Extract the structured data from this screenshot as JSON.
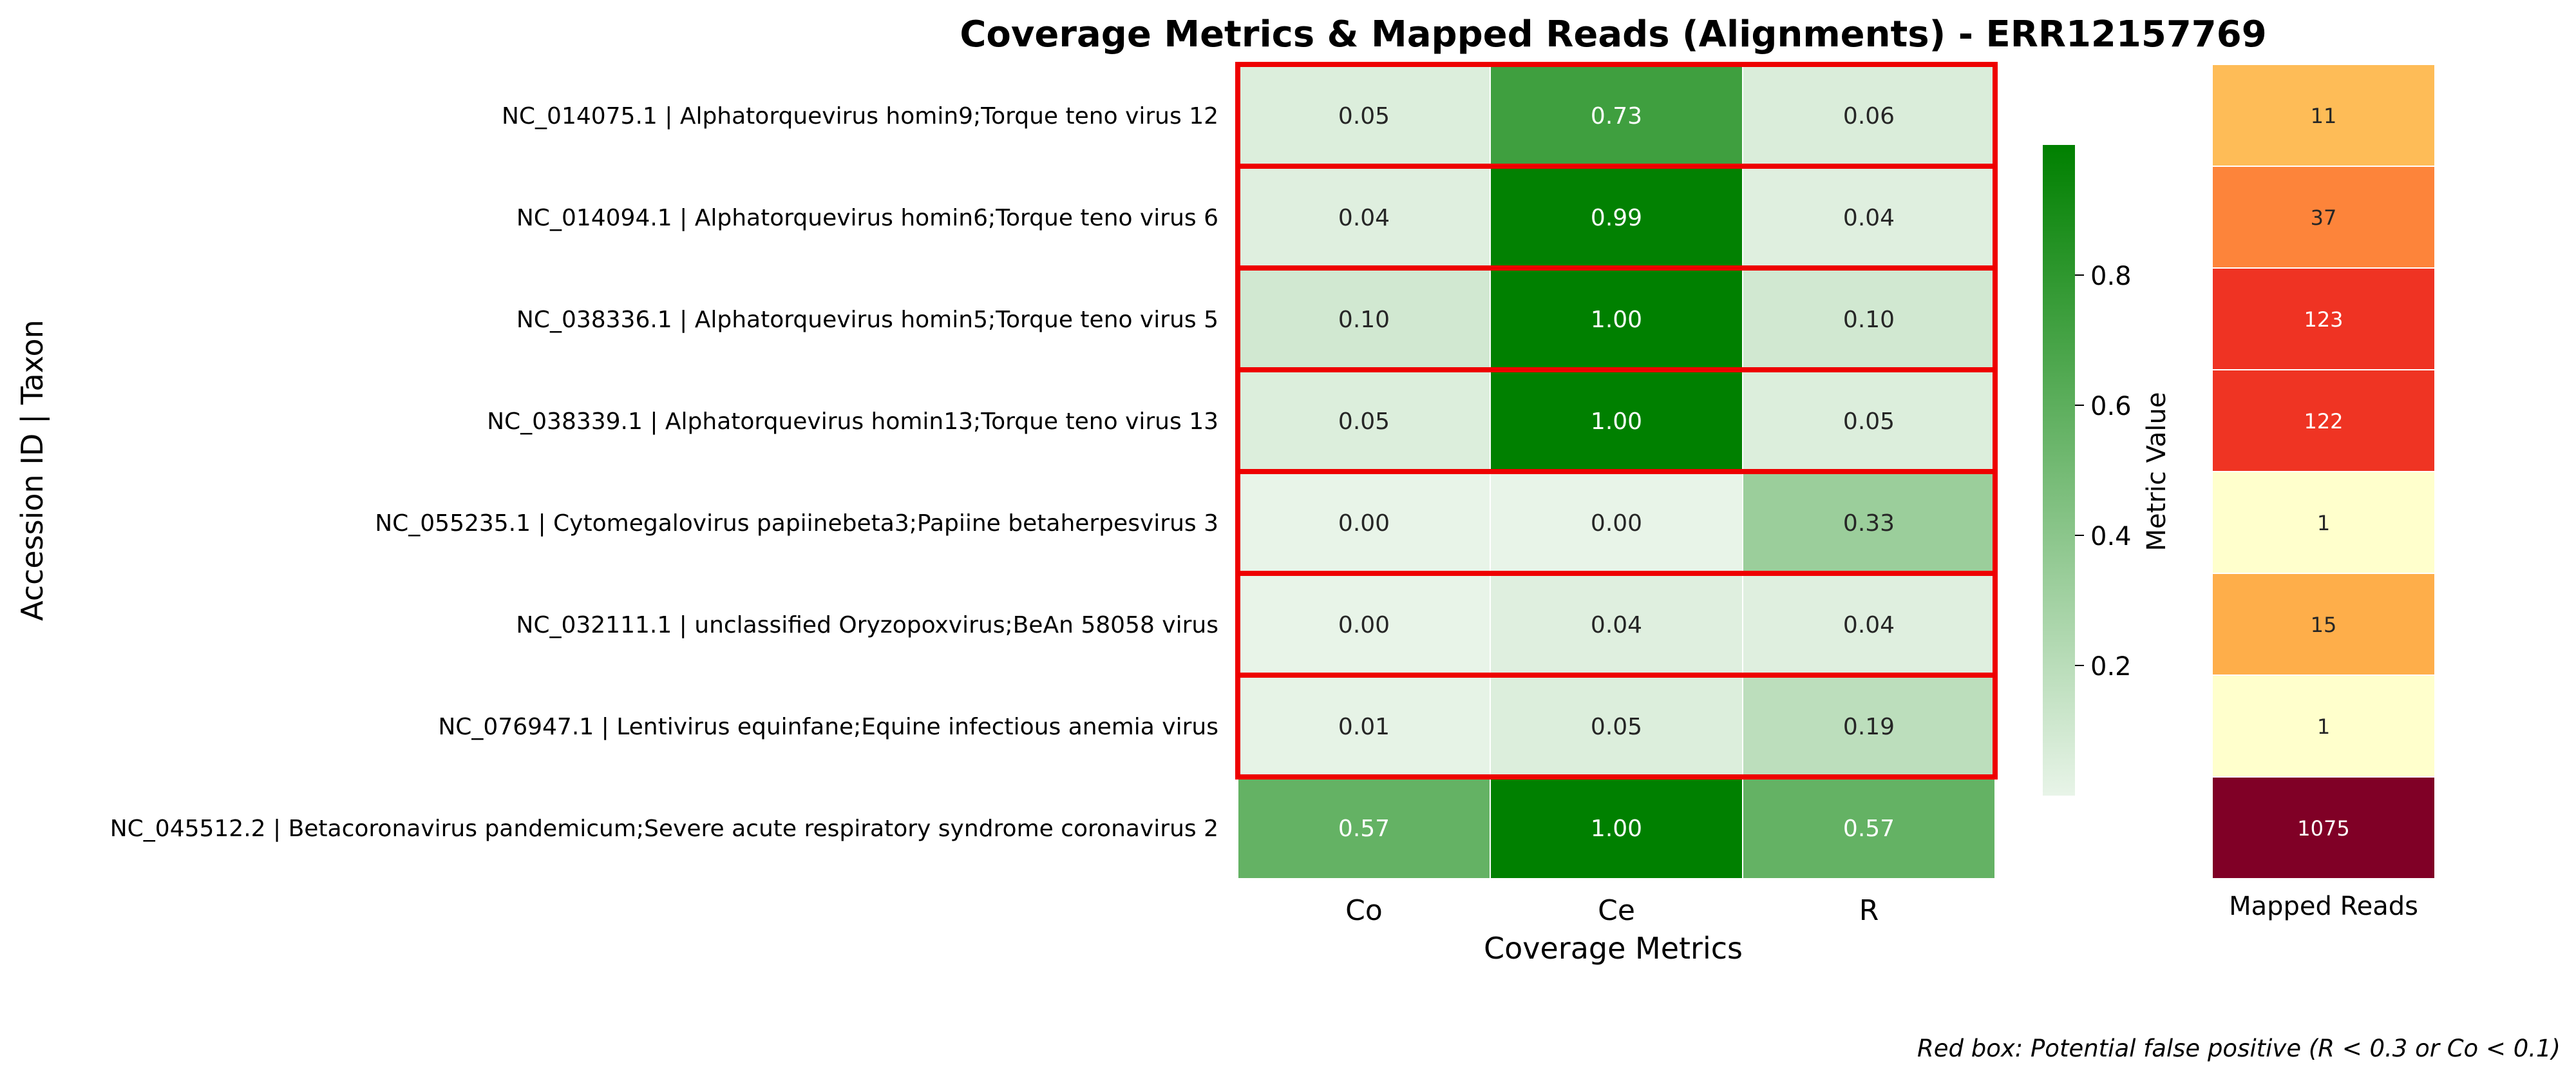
{
  "chart_data": {
    "type": "heatmap",
    "title": "Coverage Metrics & Mapped Reads (Alignments) - ERR12157769",
    "ylabel": "Accession ID | Taxon",
    "xlabel": "Coverage Metrics",
    "columns": [
      "Co",
      "Ce",
      "R"
    ],
    "rows": [
      "NC_014075.1 | Alphatorquevirus homin9;Torque teno virus 12",
      "NC_014094.1 | Alphatorquevirus homin6;Torque teno virus 6",
      "NC_038336.1 | Alphatorquevirus homin5;Torque teno virus 5",
      "NC_038339.1 | Alphatorquevirus homin13;Torque teno virus 13",
      "NC_055235.1 | Cytomegalovirus papiinebeta3;Papiine betaherpesvirus 3",
      "NC_032111.1 | unclassified Oryzopoxvirus;BeAn 58058 virus",
      "NC_076947.1 | Lentivirus equinfane;Equine infectious anemia virus",
      "NC_045512.2 | Betacoronavirus pandemicum;Severe acute respiratory syndrome coronavirus 2"
    ],
    "values": [
      [
        0.05,
        0.73,
        0.06
      ],
      [
        0.04,
        0.99,
        0.04
      ],
      [
        0.1,
        1.0,
        0.1
      ],
      [
        0.05,
        1.0,
        0.05
      ],
      [
        0.0,
        0.0,
        0.33
      ],
      [
        0.0,
        0.04,
        0.04
      ],
      [
        0.01,
        0.05,
        0.19
      ],
      [
        0.57,
        1.0,
        0.57
      ]
    ],
    "flagged": [
      true,
      true,
      true,
      true,
      true,
      true,
      true,
      false
    ],
    "colorbar": {
      "label": "Metric Value",
      "ticks": [
        0.2,
        0.4,
        0.6,
        0.8
      ],
      "range": [
        0,
        1
      ],
      "color_low": "#e8f4e8",
      "color_high": "#008000"
    },
    "mapped_reads": {
      "label": "Mapped Reads",
      "values": [
        11,
        37,
        123,
        122,
        1,
        15,
        1,
        1075
      ],
      "colormap": "YlOrRd"
    },
    "flag_color": "#ee0000",
    "footnote": "Red box: Potential false positive (R < 0.3 or Co < 0.1)"
  }
}
